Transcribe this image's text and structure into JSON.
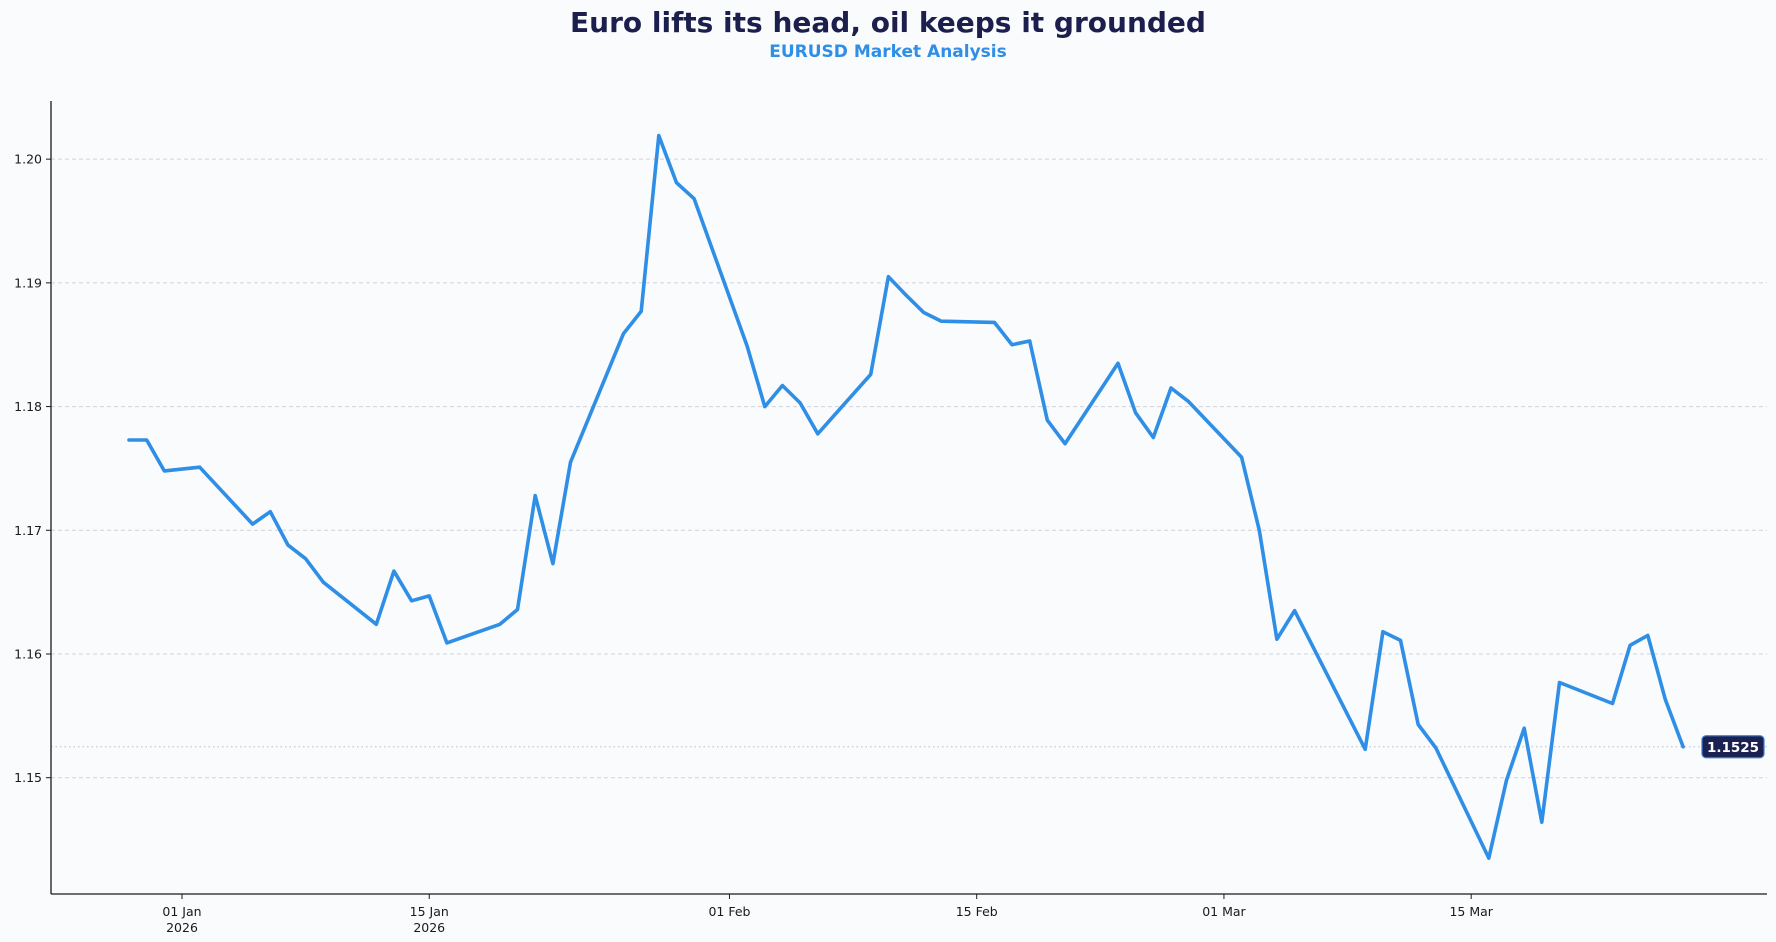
{
  "header": {
    "title": "Euro lifts its head, oil keeps it grounded",
    "subtitle": "EURUSD Market Analysis"
  },
  "colors": {
    "line": "#2f8ee5",
    "title": "#1c1f4d",
    "subtitle": "#2f8ee5",
    "label_bg": "#1b2150",
    "grid": "#d0d4da"
  },
  "chart_data": {
    "type": "line",
    "title": "Euro lifts its head, oil keeps it grounded",
    "subtitle": "EURUSD Market Analysis",
    "xlabel": "",
    "ylabel": "",
    "ylim": [
      1.1406,
      1.2047
    ],
    "yticks": [
      "1.15",
      "1.16",
      "1.17",
      "1.18",
      "1.19",
      "1.20"
    ],
    "xticks": [
      {
        "label": "01 Jan",
        "sub": "2026",
        "date": "2026-01-01"
      },
      {
        "label": "15 Jan",
        "sub": "2026",
        "date": "2026-01-15"
      },
      {
        "label": "01 Feb",
        "sub": "",
        "date": "2026-02-01"
      },
      {
        "label": "15 Feb",
        "sub": "",
        "date": "2026-02-15"
      },
      {
        "label": "01 Mar",
        "sub": "",
        "date": "2026-03-01"
      },
      {
        "label": "15 Mar",
        "sub": "",
        "date": "2026-03-15"
      }
    ],
    "grid": "horizontal dashed",
    "legend": "none",
    "last_value_label": "1.1525",
    "series": [
      {
        "name": "EURUSD",
        "x": [
          "2025-12-29",
          "2025-12-30",
          "2025-12-31",
          "2026-01-02",
          "2026-01-05",
          "2026-01-06",
          "2026-01-07",
          "2026-01-08",
          "2026-01-09",
          "2026-01-12",
          "2026-01-13",
          "2026-01-14",
          "2026-01-15",
          "2026-01-16",
          "2026-01-19",
          "2026-01-20",
          "2026-01-21",
          "2026-01-22",
          "2026-01-23",
          "2026-01-26",
          "2026-01-27",
          "2026-01-28",
          "2026-01-29",
          "2026-01-30",
          "2026-02-02",
          "2026-02-03",
          "2026-02-04",
          "2026-02-05",
          "2026-02-06",
          "2026-02-09",
          "2026-02-10",
          "2026-02-11",
          "2026-02-12",
          "2026-02-13",
          "2026-02-16",
          "2026-02-17",
          "2026-02-18",
          "2026-02-19",
          "2026-02-20",
          "2026-02-23",
          "2026-02-24",
          "2026-02-25",
          "2026-02-26",
          "2026-02-27",
          "2026-03-02",
          "2026-03-03",
          "2026-03-04",
          "2026-03-05",
          "2026-03-09",
          "2026-03-10",
          "2026-03-11",
          "2026-03-12",
          "2026-03-13",
          "2026-03-16",
          "2026-03-17",
          "2026-03-18",
          "2026-03-19",
          "2026-03-20",
          "2026-03-23",
          "2026-03-24",
          "2026-03-25",
          "2026-03-26",
          "2026-03-27"
        ],
        "values": [
          1.1773,
          1.1773,
          1.1748,
          1.1751,
          1.1705,
          1.1715,
          1.1688,
          1.1677,
          1.1658,
          1.1624,
          1.1667,
          1.1643,
          1.1647,
          1.1609,
          1.1624,
          1.1636,
          1.1728,
          1.1673,
          1.1755,
          1.1859,
          1.1877,
          1.2019,
          1.1981,
          1.1968,
          1.1849,
          1.18,
          1.1817,
          1.1803,
          1.1778,
          1.1826,
          1.1905,
          1.189,
          1.1876,
          1.1869,
          1.1868,
          1.185,
          1.1853,
          1.1789,
          1.177,
          1.1835,
          1.1795,
          1.1775,
          1.1815,
          1.1804,
          1.1759,
          1.17,
          1.1612,
          1.1635,
          1.1523,
          1.1618,
          1.1611,
          1.1543,
          1.1524,
          1.1435,
          1.1498,
          1.154,
          1.1464,
          1.1577,
          1.156,
          1.1607,
          1.1615,
          1.1563,
          1.1525
        ]
      }
    ]
  }
}
